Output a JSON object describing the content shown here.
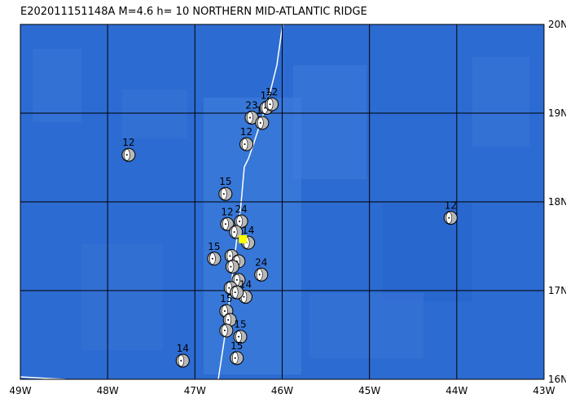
{
  "map": {
    "title": "E202011151148A  M=4.6  h= 10  NORTHERN MID-ATLANTIC RIDGE",
    "xlim": [
      -49,
      -43
    ],
    "ylim": [
      16,
      20
    ],
    "xticks": [
      {
        "value": -49,
        "label": "49W"
      },
      {
        "value": -48,
        "label": "48W"
      },
      {
        "value": -47,
        "label": "47W"
      },
      {
        "value": -46,
        "label": "46W"
      },
      {
        "value": -45,
        "label": "45W"
      },
      {
        "value": -44,
        "label": "44W"
      },
      {
        "value": -43,
        "label": "43W"
      }
    ],
    "yticks": [
      {
        "value": 16,
        "label": "16N"
      },
      {
        "value": 17,
        "label": "17N"
      },
      {
        "value": 18,
        "label": "18N"
      },
      {
        "value": 19,
        "label": "19N"
      },
      {
        "value": 20,
        "label": "20N"
      }
    ],
    "events": [
      {
        "lon": -47.76,
        "lat": 18.53,
        "label": "12"
      },
      {
        "lon": -46.65,
        "lat": 18.09,
        "label": "15"
      },
      {
        "lon": -46.41,
        "lat": 18.65,
        "label": "12"
      },
      {
        "lon": -46.35,
        "lat": 18.95,
        "label": "23"
      },
      {
        "lon": -46.23,
        "lat": 18.89,
        "label": "12"
      },
      {
        "lon": -46.18,
        "lat": 19.06,
        "label": "12"
      },
      {
        "lon": -46.12,
        "lat": 19.1,
        "label": "12"
      },
      {
        "lon": -46.63,
        "lat": 17.75,
        "label": "12"
      },
      {
        "lon": -46.47,
        "lat": 17.78,
        "label": "24"
      },
      {
        "lon": -46.39,
        "lat": 17.54,
        "label": "14"
      },
      {
        "lon": -46.53,
        "lat": 17.66
      },
      {
        "lon": -46.78,
        "lat": 17.36,
        "label": "15"
      },
      {
        "lon": -46.58,
        "lat": 17.39
      },
      {
        "lon": -46.5,
        "lat": 17.33
      },
      {
        "lon": -46.57,
        "lat": 17.27
      },
      {
        "lon": -46.24,
        "lat": 17.18,
        "label": "24"
      },
      {
        "lon": -46.5,
        "lat": 17.12
      },
      {
        "lon": -46.59,
        "lat": 17.03
      },
      {
        "lon": -46.42,
        "lat": 16.93,
        "label": "14"
      },
      {
        "lon": -46.52,
        "lat": 16.98
      },
      {
        "lon": -46.64,
        "lat": 16.77,
        "label": "15"
      },
      {
        "lon": -46.6,
        "lat": 16.67
      },
      {
        "lon": -46.64,
        "lat": 16.55
      },
      {
        "lon": -46.48,
        "lat": 16.48,
        "label": "15"
      },
      {
        "lon": -46.52,
        "lat": 16.24,
        "label": "15"
      },
      {
        "lon": -47.14,
        "lat": 16.21,
        "label": "14"
      },
      {
        "lon": -44.07,
        "lat": 17.82,
        "label": "12"
      }
    ],
    "main_event": {
      "lon": -46.45,
      "lat": 17.58
    }
  }
}
